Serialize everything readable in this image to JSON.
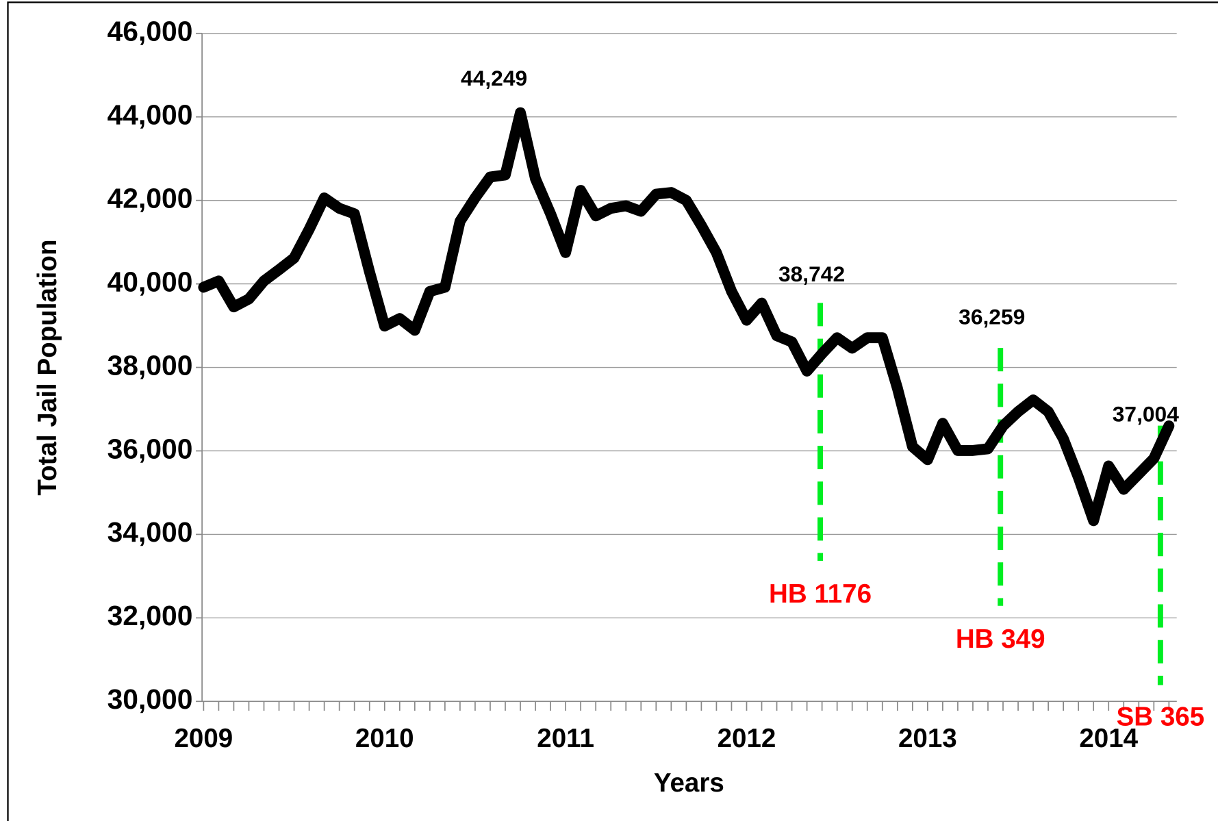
{
  "chart_data": {
    "type": "line",
    "y_label": "Total Jail Population",
    "x_label": "Years",
    "categories": [
      "2009",
      null,
      null,
      null,
      null,
      null,
      null,
      null,
      null,
      null,
      null,
      null,
      "2010",
      null,
      null,
      null,
      null,
      null,
      null,
      null,
      null,
      null,
      null,
      null,
      "2011",
      null,
      null,
      null,
      null,
      null,
      null,
      null,
      null,
      null,
      null,
      null,
      "2012",
      null,
      null,
      null,
      null,
      null,
      null,
      null,
      null,
      null,
      null,
      null,
      "2013",
      null,
      null,
      null,
      null,
      null,
      null,
      null,
      null,
      null,
      null,
      null,
      "2014",
      null,
      null,
      null,
      null
    ],
    "series": [
      {
        "name": "Total Jail Population",
        "color": "#000000",
        "values": [
          39920,
          40070,
          39450,
          39640,
          40070,
          40340,
          40620,
          41310,
          42060,
          41810,
          41680,
          40290,
          38990,
          39170,
          38890,
          39820,
          39920,
          41500,
          42060,
          42560,
          42610,
          44100,
          42520,
          41680,
          40750,
          42240,
          41630,
          41810,
          41870,
          41740,
          42150,
          42190,
          42000,
          41400,
          40750,
          39820,
          39130,
          39540,
          38760,
          38610,
          37910,
          38330,
          38710,
          38460,
          38710,
          38710,
          37500,
          36100,
          35790,
          36660,
          36010,
          36010,
          36050,
          36600,
          36940,
          37220,
          36940,
          36290,
          35360,
          34330,
          35640,
          35080,
          35450,
          35820,
          36600
        ]
      }
    ],
    "ylim": [
      30000,
      46000
    ],
    "yticks": [
      {
        "value": 30000,
        "label": "30,000"
      },
      {
        "value": 32000,
        "label": "32,000"
      },
      {
        "value": 34000,
        "label": "34,000"
      },
      {
        "value": 36000,
        "label": "36,000"
      },
      {
        "value": 38000,
        "label": "38,000"
      },
      {
        "value": 40000,
        "label": "40,000"
      },
      {
        "value": 42000,
        "label": "42,000"
      },
      {
        "value": 44000,
        "label": "44,000"
      },
      {
        "value": 46000,
        "label": "46,000"
      }
    ],
    "grid": true,
    "annotations": [
      "44,249",
      "38,742",
      "36,259",
      "37,004"
    ],
    "events": [
      "HB 1176",
      "HB 349",
      "SB 365"
    ],
    "event_color": "#00ee22",
    "event_label_color": "#ff0000"
  }
}
